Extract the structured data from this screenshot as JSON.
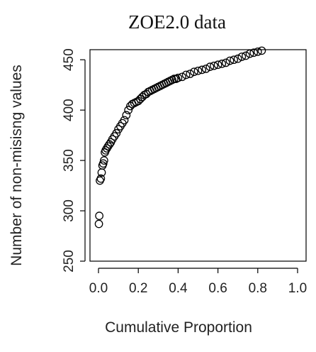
{
  "chart_data": {
    "type": "scatter",
    "title": "ZOE2.0 data",
    "xlabel": "Cumulative Proportion",
    "ylabel": "Number of non-misisng values",
    "xlim": [
      0,
      1.0
    ],
    "ylim": [
      250,
      460
    ],
    "x_ticks": [
      "0.0",
      "0.2",
      "0.4",
      "0.6",
      "0.8",
      "1.0"
    ],
    "y_ticks": [
      "250",
      "300",
      "350",
      "400",
      "450"
    ],
    "grid": false,
    "points": [
      [
        0.002,
        287
      ],
      [
        0.004,
        295
      ],
      [
        0.007,
        330
      ],
      [
        0.012,
        332
      ],
      [
        0.016,
        338
      ],
      [
        0.02,
        345
      ],
      [
        0.024,
        347
      ],
      [
        0.028,
        350
      ],
      [
        0.032,
        358
      ],
      [
        0.036,
        360
      ],
      [
        0.042,
        362
      ],
      [
        0.048,
        364
      ],
      [
        0.055,
        366
      ],
      [
        0.062,
        368
      ],
      [
        0.07,
        371
      ],
      [
        0.08,
        374
      ],
      [
        0.09,
        377
      ],
      [
        0.1,
        381
      ],
      [
        0.11,
        384
      ],
      [
        0.12,
        387
      ],
      [
        0.13,
        390
      ],
      [
        0.14,
        395
      ],
      [
        0.15,
        400
      ],
      [
        0.16,
        404
      ],
      [
        0.17,
        406
      ],
      [
        0.18,
        407
      ],
      [
        0.19,
        408
      ],
      [
        0.2,
        409
      ],
      [
        0.21,
        411
      ],
      [
        0.22,
        413
      ],
      [
        0.23,
        415
      ],
      [
        0.24,
        416
      ],
      [
        0.25,
        418
      ],
      [
        0.26,
        419
      ],
      [
        0.27,
        420
      ],
      [
        0.28,
        421
      ],
      [
        0.29,
        422
      ],
      [
        0.3,
        423
      ],
      [
        0.31,
        424
      ],
      [
        0.32,
        425
      ],
      [
        0.33,
        426
      ],
      [
        0.34,
        427
      ],
      [
        0.35,
        428
      ],
      [
        0.36,
        429
      ],
      [
        0.37,
        430
      ],
      [
        0.38,
        431
      ],
      [
        0.39,
        431
      ],
      [
        0.4,
        432
      ],
      [
        0.42,
        433
      ],
      [
        0.44,
        435
      ],
      [
        0.46,
        436
      ],
      [
        0.48,
        438
      ],
      [
        0.5,
        439
      ],
      [
        0.52,
        440
      ],
      [
        0.54,
        441
      ],
      [
        0.56,
        443
      ],
      [
        0.58,
        444
      ],
      [
        0.6,
        445
      ],
      [
        0.62,
        446
      ],
      [
        0.64,
        447
      ],
      [
        0.66,
        449
      ],
      [
        0.68,
        450
      ],
      [
        0.7,
        451
      ],
      [
        0.72,
        453
      ],
      [
        0.74,
        454
      ],
      [
        0.76,
        456
      ],
      [
        0.78,
        457
      ],
      [
        0.8,
        458
      ],
      [
        0.82,
        459
      ]
    ]
  }
}
